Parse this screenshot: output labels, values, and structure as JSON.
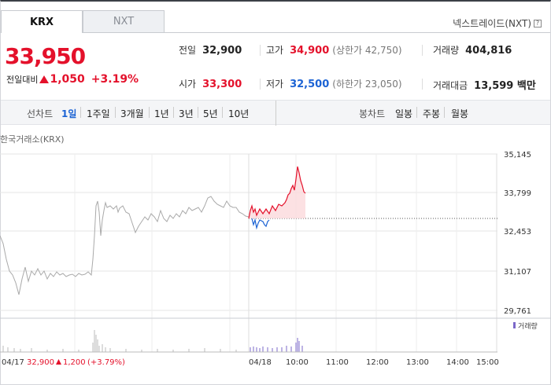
{
  "tabs": [
    {
      "label": "KRX",
      "active": true
    },
    {
      "label": "NXT",
      "active": false
    }
  ],
  "nxt_link": {
    "label": "넥스트레이드(NXT)",
    "icon": "help-icon"
  },
  "price": {
    "current": "33,950",
    "change_label": "전일대비",
    "change": "1,050",
    "change_pct": "+3.19%",
    "direction": "up"
  },
  "stats": {
    "prev_close": {
      "label": "전일",
      "value": "32,900"
    },
    "high": {
      "label": "고가",
      "value": "34,900",
      "sub": "(상한가 42,750)"
    },
    "volume": {
      "label": "거래량",
      "value": "404,816"
    },
    "open": {
      "label": "시가",
      "value": "33,300"
    },
    "low": {
      "label": "저가",
      "value": "32,500",
      "sub": "(하한가 23,050)"
    },
    "trade_value": {
      "label": "거래대금",
      "value": "13,599 백만"
    }
  },
  "line_chart": {
    "label": "선차트",
    "periods": [
      "1일",
      "1주일",
      "3개월",
      "1년",
      "3년",
      "5년",
      "10년"
    ],
    "selected": "1일"
  },
  "candle_chart": {
    "label": "봉차트",
    "periods": [
      "일봉",
      "주봉",
      "월봉"
    ]
  },
  "market_label": "한국거래소(KRX)",
  "colors": {
    "up": "#e4112b",
    "down": "#1c63d4",
    "prev_line": "#888888",
    "volume": "#7b68c9"
  },
  "chart_data": {
    "type": "line",
    "y_ticks": [
      "35,145",
      "33,799",
      "32,453",
      "31,107",
      "29,761"
    ],
    "ylim": [
      29761,
      35145
    ],
    "x_ticks": [
      "04/18",
      "10:00",
      "11:00",
      "12:00",
      "13:00",
      "14:00",
      "15:00"
    ],
    "reference_price": 32900,
    "volume_legend": "거래량",
    "prev_day": {
      "date": "04/17",
      "close": "32,900",
      "change": "1,200",
      "change_pct": "(+3.79%)"
    }
  }
}
